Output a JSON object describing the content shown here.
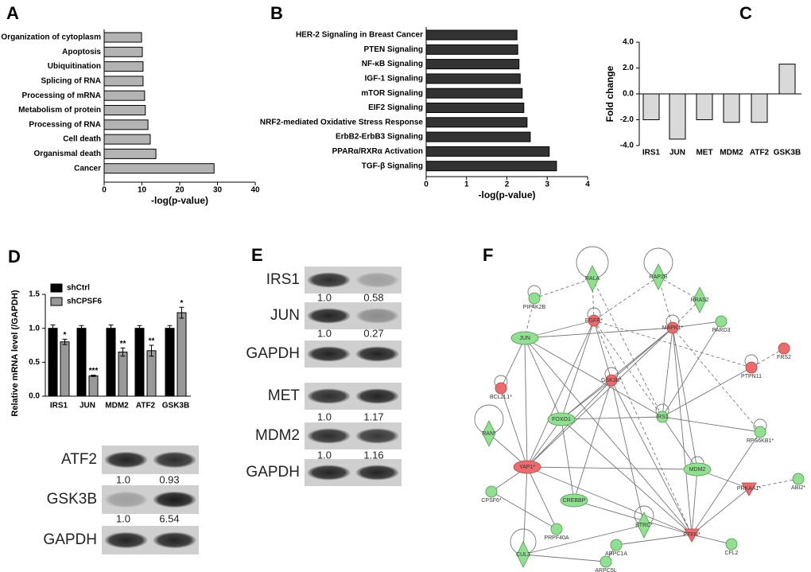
{
  "chart_data": [
    {
      "type": "hbar",
      "label": "A",
      "xlabel": "-log(p-value)",
      "categories": [
        "Organization of cytoplasm",
        "Apoptosis",
        "Ubiquitination",
        "Splicing of RNA",
        "Processing of mRNA",
        "Metabolism of protein",
        "Processing of RNA",
        "Cell death",
        "Organismal death",
        "Cancer"
      ],
      "values": [
        9.9,
        10.1,
        10.3,
        10.3,
        10.7,
        10.9,
        11.6,
        12.2,
        13.7,
        29.1
      ],
      "color": "#b3b3b3",
      "xlim": [
        0,
        40
      ],
      "xticks": [
        0,
        10,
        20,
        30,
        40
      ]
    },
    {
      "type": "hbar",
      "label": "B",
      "xlabel": "-log(p-value)",
      "categories": [
        "HER-2 Signaling in Breast Cancer",
        "PTEN Signaling",
        "NF-κB Signaling",
        "IGF-1 Signaling",
        "mTOR Signaling",
        "EIF2 Signaling",
        "NRF2-mediated Oxidative Stress Response",
        "ErbB2-ErbB3 Signaling",
        "PPARα/RXRα Activation",
        "TGF-β Signaling"
      ],
      "values": [
        2.25,
        2.27,
        2.3,
        2.33,
        2.38,
        2.42,
        2.5,
        2.58,
        3.05,
        3.23
      ],
      "color": "#333333",
      "xlim": [
        0,
        4
      ],
      "xticks": [
        0,
        1,
        2,
        3,
        4
      ]
    },
    {
      "type": "bar",
      "label": "C",
      "ylabel": "Fold change",
      "categories": [
        "IRS1",
        "JUN",
        "MET",
        "MDM2",
        "ATF2",
        "GSK3B"
      ],
      "values": [
        -2.0,
        -3.5,
        -2.0,
        -2.2,
        -2.2,
        2.3
      ],
      "color": "#d9d9d9",
      "ylim": [
        -4,
        4
      ],
      "yticks": [
        {
          "value": -4,
          "label": "-4.0"
        },
        {
          "value": -2,
          "label": "-2.0"
        },
        {
          "value": 0,
          "label": "0.0"
        },
        {
          "value": 2,
          "label": "2.0"
        },
        {
          "value": 4,
          "label": "4.0"
        }
      ]
    },
    {
      "type": "grouped_bar",
      "label": "D",
      "ylabel": "Relative mRNA level (/GAPDH)",
      "categories": [
        "IRS1",
        "JUN",
        "MDM2",
        "ATF2",
        "GSK3B"
      ],
      "series": [
        {
          "name": "shCtrl",
          "color": "#000000",
          "values": [
            1.0,
            1.0,
            1.0,
            1.0,
            1.0
          ],
          "errors": [
            0.05,
            0.04,
            0.05,
            0.04,
            0.04
          ]
        },
        {
          "name": "shCPSF6",
          "color": "#999999",
          "values": [
            0.8,
            0.3,
            0.65,
            0.67,
            1.23
          ],
          "errors": [
            0.04,
            0.01,
            0.06,
            0.08,
            0.08
          ],
          "annotations": [
            "*",
            "***",
            "**",
            "**",
            "*"
          ]
        }
      ],
      "ylim": [
        0,
        1.5
      ],
      "yticks": [
        {
          "value": 0,
          "label": "0.0"
        },
        0.5,
        {
          "value": 1,
          "label": "1.0"
        },
        {
          "value": 1.5,
          "label": "1.5"
        }
      ]
    }
  ],
  "blots": [
    {
      "rows": [
        {
          "name": "ATF2",
          "ratios": [
            "1.0",
            "0.93"
          ]
        },
        {
          "name": "GSK3B",
          "ratios": [
            "1.0",
            "6.54"
          ]
        },
        {
          "name": "GAPDH"
        }
      ]
    },
    {
      "label": "E",
      "rows": [
        {
          "name": "IRS1",
          "ratios": [
            "1.0",
            "0.58"
          ]
        },
        {
          "name": "JUN",
          "ratios": [
            "1.0",
            "0.27"
          ]
        },
        {
          "name": "GAPDH"
        },
        {
          "name": "MET",
          "ratios": [
            "1.0",
            "1.17"
          ]
        },
        {
          "name": "MDM2",
          "ratios": [
            "1.0",
            "1.16"
          ]
        },
        {
          "name": "GAPDH"
        }
      ]
    }
  ],
  "network": {
    "label": "F",
    "nodes": [
      {
        "label": "RALA",
        "color": "green",
        "shape": "diamond"
      },
      {
        "label": "RAP2B",
        "color": "green",
        "shape": "diamond"
      },
      {
        "label": "PIP4K2B",
        "color": "green",
        "shape": "circle"
      },
      {
        "label": "RRAS2",
        "color": "green",
        "shape": "diamond"
      },
      {
        "label": "EGFR*",
        "color": "red",
        "shape": "circle"
      },
      {
        "label": "MAPK1*",
        "color": "red",
        "shape": "circle"
      },
      {
        "label": "PARD3",
        "color": "green",
        "shape": "circle"
      },
      {
        "label": "JUN",
        "color": "green",
        "shape": "ellipse"
      },
      {
        "label": "FRS2",
        "color": "red",
        "shape": "circle"
      },
      {
        "label": "PTPN11",
        "color": "red",
        "shape": "circle"
      },
      {
        "label": "GSK3B*",
        "color": "red",
        "shape": "circle"
      },
      {
        "label": "BCL2L1*",
        "color": "red",
        "shape": "circle"
      },
      {
        "label": "FOXO1",
        "color": "green",
        "shape": "ellipse"
      },
      {
        "label": "IRS1",
        "color": "green",
        "shape": "circle"
      },
      {
        "label": "RPS6KB1*",
        "color": "green",
        "shape": "circle"
      },
      {
        "label": "RAN*",
        "color": "green",
        "shape": "diamond"
      },
      {
        "label": "YAP1*",
        "color": "red",
        "shape": "ellipse"
      },
      {
        "label": "MDM2",
        "color": "green",
        "shape": "ellipse"
      },
      {
        "label": "ABI2*",
        "color": "green",
        "shape": "circle"
      },
      {
        "label": "CPSF6*",
        "color": "green",
        "shape": "circle"
      },
      {
        "label": "CREBBP",
        "color": "green",
        "shape": "ellipse"
      },
      {
        "label": "PRKAA1*",
        "color": "red",
        "shape": "triangle"
      },
      {
        "label": "PRPF40A",
        "color": "green",
        "shape": "circle"
      },
      {
        "label": "BTRC*",
        "color": "green",
        "shape": "diamond"
      },
      {
        "label": "PTEN*",
        "color": "red",
        "shape": "triangle"
      },
      {
        "label": "ARPC1A",
        "color": "green",
        "shape": "circle"
      },
      {
        "label": "CFL2",
        "color": "green",
        "shape": "circle"
      },
      {
        "label": "CUL3",
        "color": "green",
        "shape": "diamond"
      },
      {
        "label": "ARPC5L",
        "color": "green",
        "shape": "circle"
      }
    ]
  }
}
